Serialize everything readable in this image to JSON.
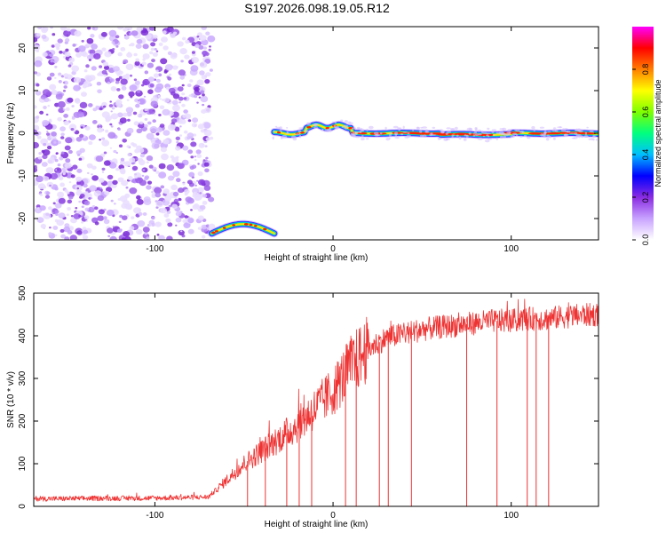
{
  "title": "S197.2026.098.19.05.R12",
  "chart_data": [
    {
      "type": "heatmap",
      "name": "spectrogram",
      "xlabel": "Height of straight line (km)",
      "ylabel": "Frequency (Hz)",
      "xlim": [
        -168,
        149
      ],
      "ylim": [
        -25,
        25
      ],
      "xticks": [
        -100,
        0,
        100
      ],
      "xtick_labels": [
        "-100",
        "0",
        "100"
      ],
      "yticks": [
        -20,
        -10,
        0,
        10,
        20
      ],
      "ytick_labels": [
        "-20",
        "-10",
        "0",
        "10",
        "20"
      ],
      "regions": [
        {
          "label": "noise",
          "x": [
            -168,
            -68
          ],
          "y": [
            -25,
            25
          ],
          "amplitude": 0.15
        },
        {
          "label": "low-tone",
          "x": [
            -68,
            -33
          ],
          "freq_center": -22,
          "amplitude": 0.7
        },
        {
          "label": "carrier",
          "x": [
            -33,
            149
          ],
          "freq_center": 0,
          "amplitude": 0.9
        }
      ],
      "colorbar": {
        "label": "Normalized spectral amplitude",
        "range": [
          0,
          1
        ],
        "ticks": [
          0,
          0.2,
          0.4,
          0.6,
          0.8
        ],
        "tick_labels": [
          "0.0",
          "0.2",
          "0.4",
          "0.6",
          "0.8"
        ],
        "colors": [
          "#ffffff",
          "#c8a2ff",
          "#8a2be2",
          "#0000ff",
          "#00bfff",
          "#00ff7f",
          "#7fff00",
          "#ffff00",
          "#ff7f00",
          "#ff0000",
          "#ff00ff"
        ]
      }
    },
    {
      "type": "line",
      "name": "snr",
      "xlabel": "Height of straight line (km)",
      "ylabel": "SNR (10 * v/v)",
      "xlim": [
        -168,
        149
      ],
      "ylim": [
        0,
        500
      ],
      "xticks": [
        -100,
        0,
        100
      ],
      "xtick_labels": [
        "-100",
        "0",
        "100"
      ],
      "yticks": [
        0,
        100,
        200,
        300,
        400,
        500
      ],
      "ytick_labels": [
        "0",
        "100",
        "200",
        "300",
        "400",
        "500"
      ],
      "color": "#ee3333",
      "x": [
        -168,
        -150,
        -130,
        -110,
        -90,
        -70,
        -60,
        -50,
        -40,
        -30,
        -20,
        -10,
        0,
        10,
        20,
        30,
        40,
        50,
        60,
        70,
        80,
        90,
        100,
        110,
        120,
        130,
        140,
        149
      ],
      "y": [
        18,
        18,
        19,
        19,
        20,
        22,
        60,
        100,
        130,
        160,
        190,
        230,
        270,
        330,
        370,
        395,
        405,
        415,
        420,
        425,
        430,
        435,
        435,
        440,
        440,
        445,
        448,
        450
      ],
      "dropouts": [
        -48,
        -38,
        -26,
        -19,
        -12,
        7,
        13,
        26,
        31,
        44,
        75,
        92,
        109,
        114,
        121
      ]
    }
  ]
}
